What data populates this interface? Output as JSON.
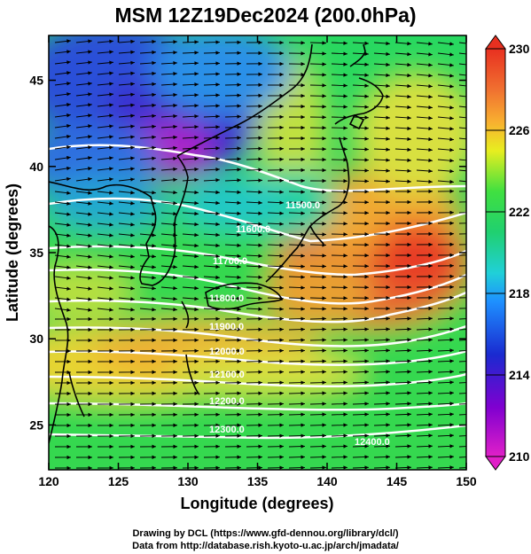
{
  "figure": {
    "title": "MSM 12Z19Dec2024 (200.0hPa)",
    "xlabel": "Longitude (degrees)",
    "ylabel": "Latitude  (degrees)",
    "credit_line1": "Drawing by DCL (https://www.gfd-dennou.org/library/dcl/)",
    "credit_line2": "Data from http://database.rish.kyoto-u.ac.jp/arch/jmadata/"
  },
  "chart_data": {
    "type": "heatmap",
    "xlim": [
      120,
      150
    ],
    "ylim": [
      22.4,
      47.6
    ],
    "x_ticks": [
      120,
      125,
      130,
      135,
      140,
      145,
      150
    ],
    "y_ticks": [
      25,
      30,
      35,
      40,
      45
    ],
    "colorbar": {
      "min": 210,
      "max": 230,
      "ticks": [
        210,
        214,
        218,
        222,
        226,
        230
      ]
    },
    "contour_labels": [
      "11500.0",
      "11600.0",
      "11700.0",
      "11800.0",
      "11900.0",
      "12000.0",
      "12100.0",
      "12200.0",
      "12300.0",
      "12400.0"
    ],
    "colors": {
      "cold": "#8a00c8",
      "cool": "#1d3fd8",
      "mid": "#1fd07a",
      "warm": "#f0e020",
      "hot": "#e8402a"
    }
  }
}
